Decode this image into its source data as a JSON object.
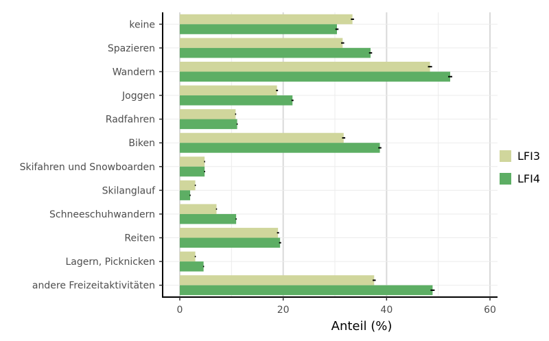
{
  "chart_data": {
    "type": "bar",
    "orientation": "horizontal",
    "categories": [
      "keine",
      "Spazieren",
      "Wandern",
      "Joggen",
      "Radfahren",
      "Biken",
      "Skifahren und Snowboarden",
      "Skilanglauf",
      "Schneeschuhwandern",
      "Reiten",
      "Lagern, Picknicken",
      "andere Freizeitaktivitäten"
    ],
    "series": [
      {
        "name": "LFI3",
        "color": "#d0d69c",
        "values": [
          33.4,
          31.5,
          48.4,
          18.8,
          10.8,
          31.7,
          4.8,
          3.0,
          7.1,
          19.0,
          3.0,
          37.6
        ],
        "errors": [
          0.3,
          0.3,
          0.4,
          0.2,
          0.1,
          0.3,
          0.1,
          0.1,
          0.1,
          0.2,
          0.1,
          0.3
        ]
      },
      {
        "name": "LFI4",
        "color": "#5dae64",
        "values": [
          30.4,
          36.9,
          52.3,
          21.8,
          11.1,
          38.7,
          4.8,
          2.0,
          10.9,
          19.4,
          4.6,
          48.9
        ],
        "errors": [
          0.3,
          0.3,
          0.4,
          0.2,
          0.1,
          0.3,
          0.1,
          0.1,
          0.1,
          0.2,
          0.1,
          0.4
        ]
      }
    ],
    "xlabel": "Anteil (%)",
    "ylabel": "",
    "xlim": [
      0,
      60
    ],
    "xticks": [
      0,
      20,
      40,
      60
    ],
    "grid": true,
    "legend": "right",
    "grid_color": "#d9d9d9",
    "error_bar_color": "#000000"
  }
}
